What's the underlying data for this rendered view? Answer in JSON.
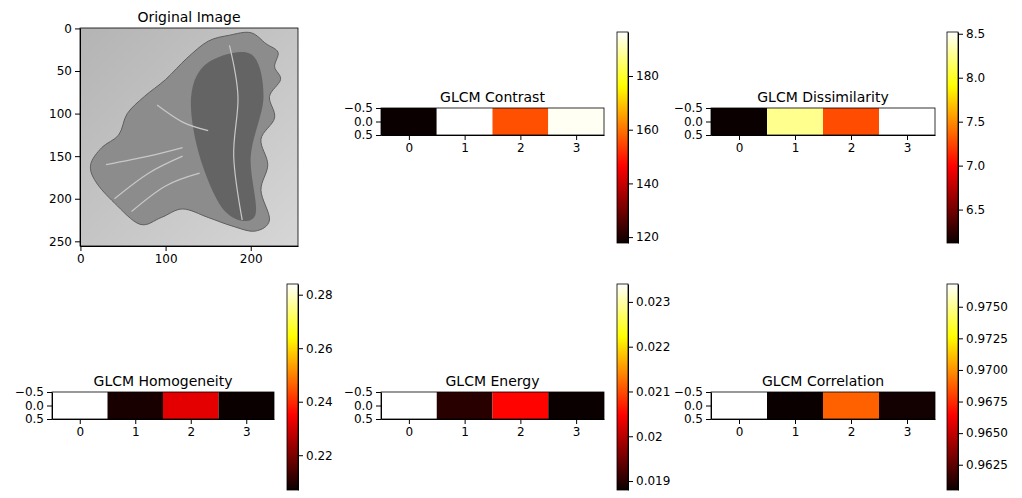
{
  "chart_data": [
    {
      "type": "image",
      "title": "Original Image",
      "xlim": [
        -0.5,
        255.5
      ],
      "ylim": [
        255.5,
        -0.5
      ],
      "xticks": [
        0,
        100,
        200
      ],
      "yticks": [
        0,
        50,
        100,
        150,
        200,
        250
      ]
    },
    {
      "type": "heatmap",
      "title": "GLCM Contrast",
      "color": "hot",
      "values": [
        [
          117.8,
          196.4,
          155.8,
          195.5
        ]
      ],
      "xlim": [
        -0.5,
        3.5
      ],
      "ylim": [
        0.5,
        -0.5
      ],
      "xticks": [
        0,
        1,
        2,
        3
      ],
      "yticks": [
        {
          "value": -0.5,
          "label": "−0.5"
        },
        {
          "value": 0,
          "label": "0.0"
        },
        {
          "value": 0.5,
          "label": "0.5"
        }
      ],
      "colorbar": {
        "range": [
          117.8,
          196.4
        ],
        "ticks": [
          120,
          140,
          160,
          180
        ]
      }
    },
    {
      "type": "heatmap",
      "title": "GLCM Dissimilarity",
      "color": "hot",
      "values": [
        [
          6.12,
          8.25,
          7.27,
          8.52
        ]
      ],
      "xlim": [
        -0.5,
        3.5
      ],
      "ylim": [
        0.5,
        -0.5
      ],
      "xticks": [
        0,
        1,
        2,
        3
      ],
      "yticks": [
        {
          "value": -0.5,
          "label": "−0.5"
        },
        {
          "value": 0,
          "label": "0.0"
        },
        {
          "value": 0.5,
          "label": "0.5"
        }
      ],
      "colorbar": {
        "range": [
          6.12,
          8.52
        ],
        "ticks": [
          6.5,
          {
            "value": 7,
            "label": "7.0"
          },
          7.5,
          {
            "value": 8,
            "label": "8.0"
          },
          8.5
        ]
      }
    },
    {
      "type": "heatmap",
      "title": "GLCM Homogeneity",
      "color": "hot",
      "values": [
        [
          0.284,
          0.2085,
          0.232,
          0.207
        ]
      ],
      "xlim": [
        -0.5,
        3.5
      ],
      "ylim": [
        0.5,
        -0.5
      ],
      "xticks": [
        0,
        1,
        2,
        3
      ],
      "yticks": [
        {
          "value": -0.5,
          "label": "−0.5"
        },
        {
          "value": 0,
          "label": "0.0"
        },
        {
          "value": 0.5,
          "label": "0.5"
        }
      ],
      "colorbar": {
        "range": [
          0.207,
          0.284
        ],
        "ticks": [
          0.22,
          0.24,
          0.26,
          0.28
        ]
      }
    },
    {
      "type": "heatmap",
      "title": "GLCM Energy",
      "color": "hot",
      "values": [
        [
          0.0234,
          0.019,
          0.0205,
          0.0188
        ]
      ],
      "xlim": [
        -0.5,
        3.5
      ],
      "ylim": [
        0.5,
        -0.5
      ],
      "xticks": [
        0,
        1,
        2,
        3
      ],
      "yticks": [
        {
          "value": -0.5,
          "label": "−0.5"
        },
        {
          "value": 0,
          "label": "0.0"
        },
        {
          "value": 0.5,
          "label": "0.5"
        }
      ],
      "colorbar": {
        "range": [
          0.0188,
          0.0234
        ],
        "ticks": [
          0.019,
          0.02,
          0.021,
          0.022,
          0.023
        ]
      }
    },
    {
      "type": "heatmap",
      "title": "GLCM Correlation",
      "color": "hot",
      "values": [
        [
          0.9768,
          0.9605,
          0.9688,
          0.9607
        ]
      ],
      "xlim": [
        -0.5,
        3.5
      ],
      "ylim": [
        0.5,
        -0.5
      ],
      "xticks": [
        0,
        1,
        2,
        3
      ],
      "yticks": [
        {
          "value": -0.5,
          "label": "−0.5"
        },
        {
          "value": 0,
          "label": "0.0"
        },
        {
          "value": 0.5,
          "label": "0.5"
        }
      ],
      "colorbar": {
        "range": [
          0.9605,
          0.9768
        ],
        "ticks": [
          0.9625,
          {
            "value": 0.965,
            "label": "0.9650"
          },
          0.9675,
          {
            "value": 0.97,
            "label": "0.9700"
          },
          0.9725,
          {
            "value": 0.975,
            "label": "0.9750"
          }
        ]
      }
    }
  ]
}
